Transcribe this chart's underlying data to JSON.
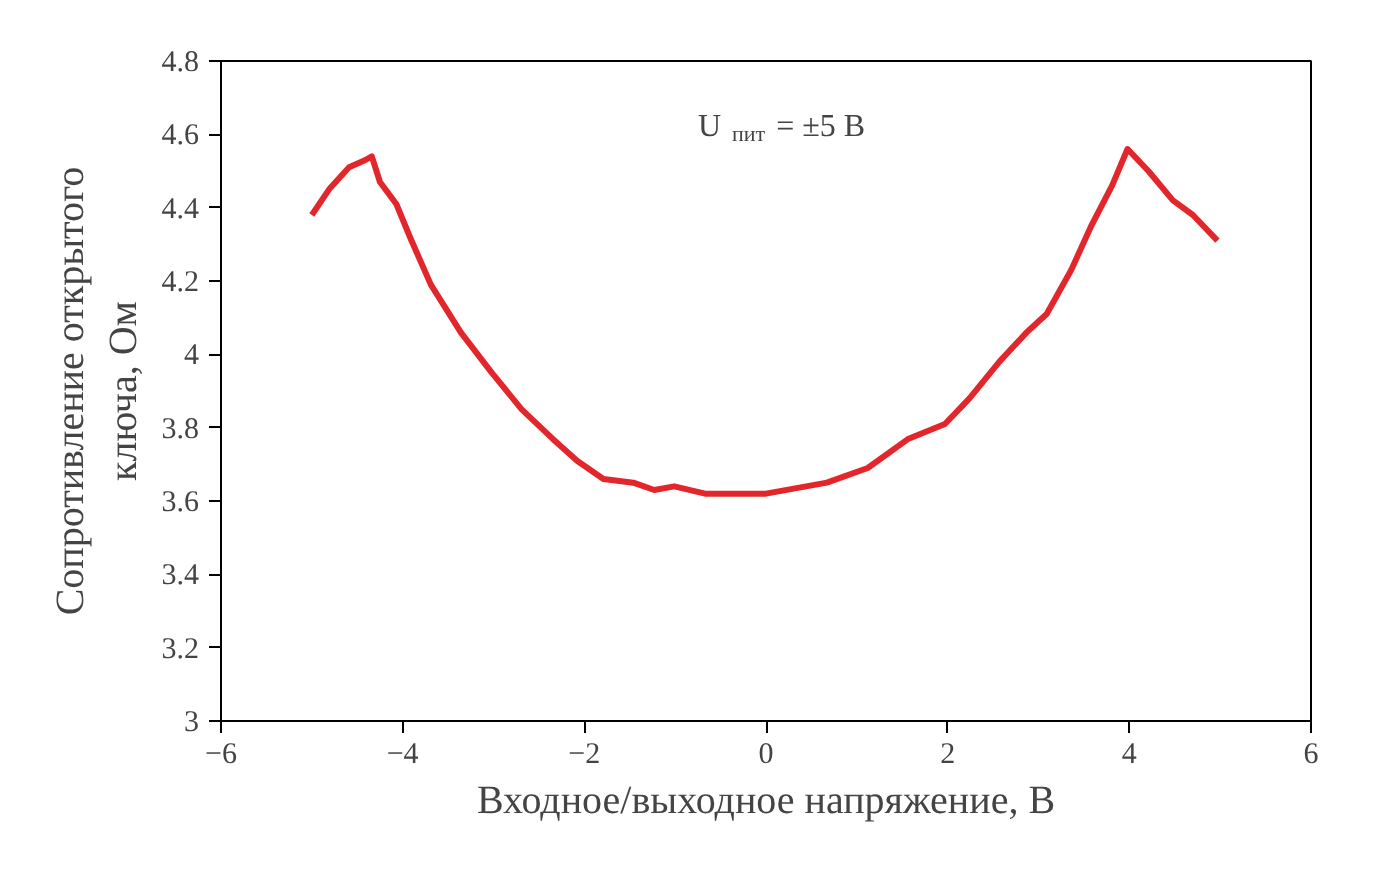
{
  "chart_data": {
    "type": "line",
    "xlabel": "Входное/выходное напряжение, В",
    "ylabel": "Сопротивление открытого\nключа, Ом",
    "annotations": [
      "U$_{пит}$ = ±5 В"
    ],
    "x": [
      -5,
      -4.81,
      -4.59,
      -4.41,
      -4.34,
      -4.25,
      -4.07,
      -3.92,
      -3.69,
      -3.36,
      -3.02,
      -2.69,
      -2.35,
      -2.08,
      -1.79,
      -1.46,
      -1.23,
      -1.01,
      -0.67,
      0,
      0.67,
      1.12,
      1.57,
      1.97,
      2.24,
      2.57,
      2.87,
      3.09,
      3.36,
      3.58,
      3.81,
      3.98,
      4.21,
      4.48,
      4.7,
      4.97
    ],
    "series": [
      {
        "color": "#e3262b",
        "values": [
          4.38,
          4.45,
          4.51,
          4.53,
          4.54,
          4.47,
          4.41,
          4.32,
          4.19,
          4.06,
          3.95,
          3.85,
          3.77,
          3.71,
          3.66,
          3.65,
          3.63,
          3.64,
          3.62,
          3.62,
          3.65,
          3.69,
          3.77,
          3.81,
          3.88,
          3.98,
          4.06,
          4.11,
          4.23,
          4.35,
          4.46,
          4.56,
          4.5,
          4.42,
          4.38,
          4.31
        ]
      }
    ],
    "xlim": [
      -6,
      6
    ],
    "xticks": [
      {
        "value": -6,
        "label": "−6"
      },
      {
        "value": -4,
        "label": "−4"
      },
      {
        "value": -2,
        "label": "−2"
      },
      0,
      2,
      4,
      6
    ],
    "ylim": [
      3,
      4.8
    ],
    "yticks": [
      3,
      3.2,
      3.4,
      3.6,
      3.8,
      4,
      4.2,
      4.4,
      4.6,
      4.8
    ],
    "grid": false,
    "line_style": "solid",
    "marker": "none"
  }
}
